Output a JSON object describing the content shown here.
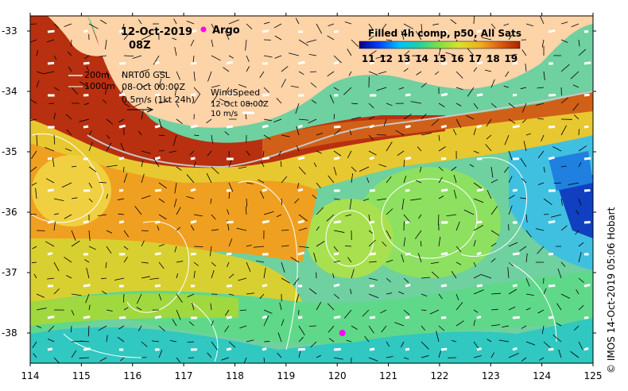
{
  "map": {
    "date": "12-Oct-2019",
    "hour": "08Z",
    "argo_label": "Argo",
    "product_title": "Filled 4h comp, p50, All Sats",
    "colorbar_ticks": [
      "11",
      "12",
      "13",
      "14",
      "15",
      "16",
      "17",
      "18",
      "19"
    ],
    "colorbar_colors": [
      "#00008b",
      "#0040ff",
      "#00c0ff",
      "#20d0a0",
      "#80e040",
      "#d8e030",
      "#f0b020",
      "#e06010",
      "#b02000"
    ],
    "isobaths": [
      "200m",
      "1000m"
    ],
    "current_label": "NRT00 GSL",
    "current_time": "08-Oct 00:00Z",
    "current_scale": "0.5m/s (1kt 24h)",
    "wind_label": "WindSpeed",
    "wind_time": "12-Oct 08:00Z",
    "wind_scale": "10 m/s",
    "lat_labels": [
      "-33",
      "-34",
      "-35",
      "-36",
      "-37",
      "-38"
    ],
    "lon_labels": [
      "114",
      "115",
      "116",
      "117",
      "118",
      "119",
      "120",
      "121",
      "122",
      "123",
      "124",
      "125"
    ],
    "credit": "© IMOS 14-Oct-2019 05:06 Hobart",
    "land_color": "#fdd3a8",
    "argo_color": "#ff00ff",
    "argo_float": {
      "lon": 120.1,
      "lat": -38.0
    }
  }
}
